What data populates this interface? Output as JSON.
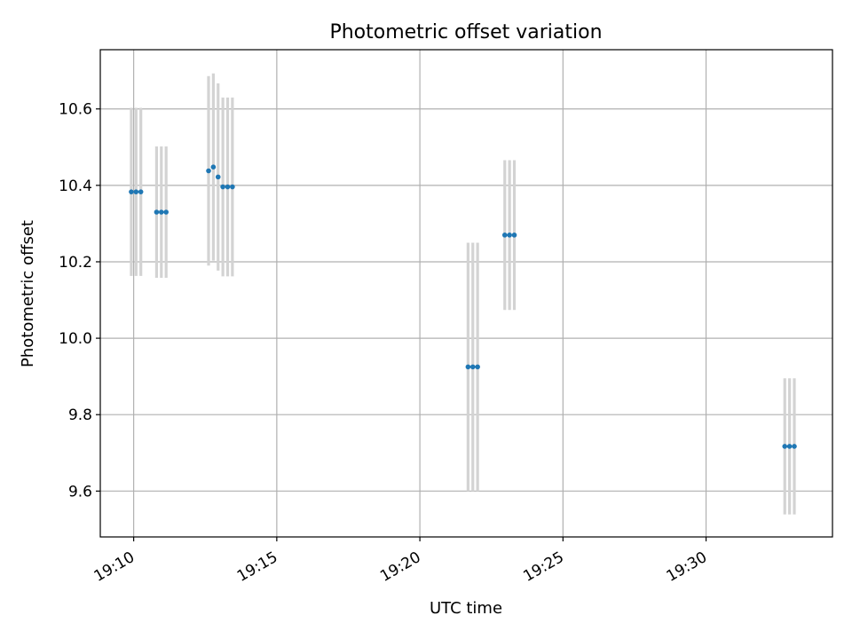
{
  "chart_data": {
    "type": "scatter",
    "title": "Photometric offset variation",
    "xlabel": "UTC time",
    "ylabel": "Photometric offset",
    "x_axis_kind": "time",
    "xlim": [
      "19:08:50",
      "19:34:25"
    ],
    "ylim": [
      9.48,
      10.755
    ],
    "x_ticks": [
      "19:10",
      "19:15",
      "19:20",
      "19:25",
      "19:30"
    ],
    "y_ticks": [
      9.6,
      9.8,
      10.0,
      10.2,
      10.4,
      10.6
    ],
    "grid": true,
    "colors": {
      "points": "#1f77b4",
      "error_bars": "#d3d3d3",
      "grid": "#b0b0b0"
    },
    "series": [
      {
        "points": [
          {
            "x": "19:09:55",
            "y": 10.383,
            "err": 0.22
          },
          {
            "x": "19:10:05",
            "y": 10.383,
            "err": 0.22
          },
          {
            "x": "19:10:15",
            "y": 10.383,
            "err": 0.22
          },
          {
            "x": "19:10:48",
            "y": 10.33,
            "err": 0.172
          },
          {
            "x": "19:10:58",
            "y": 10.33,
            "err": 0.172
          },
          {
            "x": "19:11:08",
            "y": 10.33,
            "err": 0.172
          },
          {
            "x": "19:12:37",
            "y": 10.438,
            "err": 0.248
          },
          {
            "x": "19:12:47",
            "y": 10.448,
            "err": 0.245
          },
          {
            "x": "19:12:57",
            "y": 10.422,
            "err": 0.245
          },
          {
            "x": "19:13:07",
            "y": 10.396,
            "err": 0.234
          },
          {
            "x": "19:13:17",
            "y": 10.396,
            "err": 0.234
          },
          {
            "x": "19:13:27",
            "y": 10.396,
            "err": 0.234
          },
          {
            "x": "19:21:41",
            "y": 9.925,
            "err": 0.325
          },
          {
            "x": "19:21:51",
            "y": 9.925,
            "err": 0.325
          },
          {
            "x": "19:22:01",
            "y": 9.925,
            "err": 0.325
          },
          {
            "x": "19:22:58",
            "y": 10.27,
            "err": 0.196
          },
          {
            "x": "19:23:08",
            "y": 10.27,
            "err": 0.196
          },
          {
            "x": "19:23:18",
            "y": 10.27,
            "err": 0.196
          },
          {
            "x": "19:32:45",
            "y": 9.717,
            "err": 0.178
          },
          {
            "x": "19:32:55",
            "y": 9.717,
            "err": 0.178
          },
          {
            "x": "19:33:05",
            "y": 9.717,
            "err": 0.178
          }
        ]
      }
    ]
  }
}
